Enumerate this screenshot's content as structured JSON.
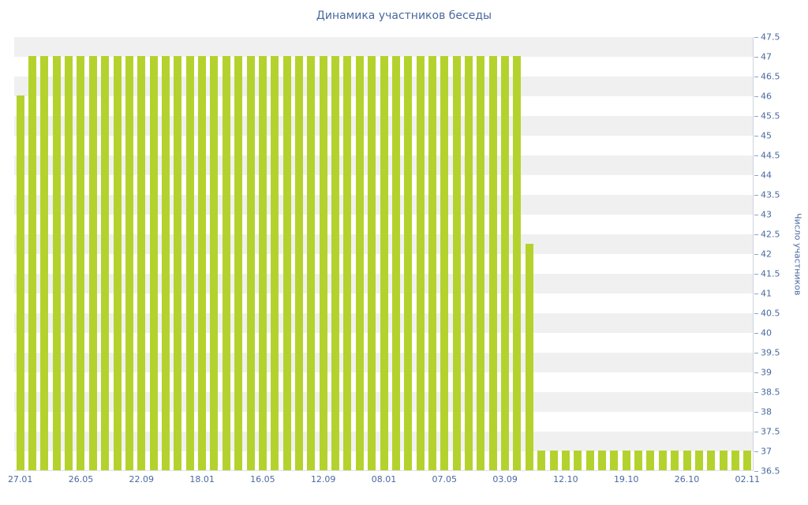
{
  "colors": {
    "bar": "#b4d22e",
    "text": "#49699e",
    "stripe": "#f0f0f0",
    "axis_line": "#ccd3dc",
    "tick_mark": "#90a4c2"
  },
  "chart_data": {
    "type": "bar",
    "title": "Динамика участников беседы",
    "xlabel": "",
    "ylabel": "Число участников",
    "ylim": [
      36.5,
      47.5
    ],
    "y_tick_step": 0.5,
    "grid": "striped-horizontal-bands",
    "legend": "none",
    "y_axis_position": "right",
    "y_tick_labels": [
      "47.5",
      "47",
      "46.5",
      "46",
      "45.5",
      "45",
      "44.5",
      "44",
      "43.5",
      "43",
      "42.5",
      "42",
      "41.5",
      "41",
      "40.5",
      "40",
      "39.5",
      "39",
      "38.5",
      "38",
      "37.5",
      "37",
      "36.5"
    ],
    "x_tick_labels": [
      "27.01",
      "26.05",
      "22.09",
      "18.01",
      "16.05",
      "12.09",
      "08.01",
      "07.05",
      "03.09",
      "12.10",
      "19.10",
      "26.10",
      "02.11"
    ],
    "x_tick_indices": [
      0,
      5,
      10,
      15,
      20,
      25,
      30,
      35,
      40,
      45,
      50,
      55,
      60
    ],
    "values": [
      46,
      47,
      47,
      47,
      47,
      47,
      47,
      47,
      47,
      47,
      47,
      47,
      47,
      47,
      47,
      47,
      47,
      47,
      47,
      47,
      47,
      47,
      47,
      47,
      47,
      47,
      47,
      47,
      47,
      47,
      47,
      47,
      47,
      47,
      47,
      47,
      47,
      47,
      47,
      47,
      47,
      47,
      42.25,
      37,
      37,
      37,
      37,
      37,
      37,
      37,
      37,
      37,
      37,
      37,
      37,
      37,
      37,
      37,
      37,
      37,
      37
    ]
  }
}
